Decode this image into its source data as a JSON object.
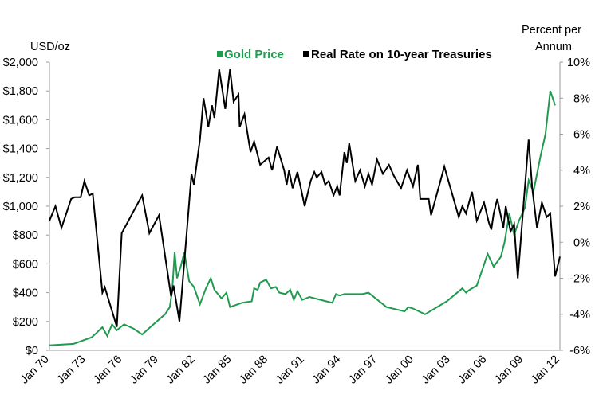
{
  "chart_data": {
    "type": "line",
    "left_axis_title": "USD/oz",
    "right_axis_title_lines": [
      "Percent per",
      "Annum"
    ],
    "left_ylim": [
      0,
      2000
    ],
    "right_ylim": [
      -6,
      10
    ],
    "left_ticks": [
      "$0",
      "$200",
      "$400",
      "$600",
      "$800",
      "$1,000",
      "$1,200",
      "$1,400",
      "$1,600",
      "$1,800",
      "$2,000"
    ],
    "right_ticks": [
      "-6%",
      "-4%",
      "-2%",
      "0%",
      "2%",
      "4%",
      "6%",
      "8%",
      "10%"
    ],
    "x_ticks": [
      "Jan 70",
      "Jan 73",
      "Jan 76",
      "Jan 79",
      "Jan 82",
      "Jan 85",
      "Jan 88",
      "Jan 91",
      "Jan 94",
      "Jan 97",
      "Jan 00",
      "Jan 03",
      "Jan 06",
      "Jan 09",
      "Jan 12"
    ],
    "xlim": [
      1970.0,
      2012.4
    ],
    "grid": false,
    "legend_position": "top-center",
    "colors": {
      "gold": "#1f9a4f",
      "real_rate": "#000000"
    },
    "series": [
      {
        "name": "Gold Price",
        "axis": "left",
        "color": "#1f9a4f",
        "points": [
          [
            1970.0,
            35
          ],
          [
            1972.0,
            45
          ],
          [
            1973.5,
            90
          ],
          [
            1973.9,
            120
          ],
          [
            1974.4,
            160
          ],
          [
            1974.8,
            100
          ],
          [
            1975.2,
            180
          ],
          [
            1975.6,
            140
          ],
          [
            1976.2,
            180
          ],
          [
            1977.0,
            150
          ],
          [
            1977.7,
            110
          ],
          [
            1978.5,
            170
          ],
          [
            1979.6,
            250
          ],
          [
            1980.0,
            300
          ],
          [
            1980.2,
            420
          ],
          [
            1980.4,
            680
          ],
          [
            1980.6,
            500
          ],
          [
            1980.9,
            580
          ],
          [
            1981.2,
            680
          ],
          [
            1981.6,
            480
          ],
          [
            1982.0,
            440
          ],
          [
            1982.5,
            320
          ],
          [
            1983.0,
            430
          ],
          [
            1983.4,
            500
          ],
          [
            1983.7,
            420
          ],
          [
            1984.3,
            360
          ],
          [
            1984.7,
            400
          ],
          [
            1985.0,
            300
          ],
          [
            1986.0,
            330
          ],
          [
            1986.8,
            340
          ],
          [
            1987.0,
            430
          ],
          [
            1987.3,
            420
          ],
          [
            1987.5,
            470
          ],
          [
            1988.0,
            490
          ],
          [
            1988.4,
            430
          ],
          [
            1988.8,
            440
          ],
          [
            1989.1,
            400
          ],
          [
            1989.6,
            390
          ],
          [
            1990.0,
            420
          ],
          [
            1990.3,
            350
          ],
          [
            1990.6,
            410
          ],
          [
            1991.0,
            350
          ],
          [
            1991.6,
            370
          ],
          [
            1993.0,
            340
          ],
          [
            1993.5,
            330
          ],
          [
            1993.8,
            390
          ],
          [
            1994.1,
            380
          ],
          [
            1994.5,
            390
          ],
          [
            1996.0,
            390
          ],
          [
            1996.5,
            400
          ],
          [
            1998.0,
            300
          ],
          [
            1999.0,
            280
          ],
          [
            1999.5,
            270
          ],
          [
            1999.8,
            300
          ],
          [
            2000.2,
            290
          ],
          [
            2001.2,
            250
          ],
          [
            2003.0,
            340
          ],
          [
            2004.3,
            430
          ],
          [
            2004.6,
            400
          ],
          [
            2004.9,
            420
          ],
          [
            2005.5,
            450
          ],
          [
            2006.0,
            570
          ],
          [
            2006.4,
            670
          ],
          [
            2006.9,
            580
          ],
          [
            2007.5,
            650
          ],
          [
            2007.8,
            750
          ],
          [
            2008.2,
            950
          ],
          [
            2008.6,
            800
          ],
          [
            2009.0,
            900
          ],
          [
            2009.5,
            990
          ],
          [
            2009.8,
            1180
          ],
          [
            2010.2,
            1100
          ],
          [
            2010.8,
            1350
          ],
          [
            2011.2,
            1500
          ],
          [
            2011.6,
            1800
          ],
          [
            2012.0,
            1700
          ]
        ]
      },
      {
        "name": "Real Rate on 10-year Treasuries",
        "axis": "right",
        "color": "#000000",
        "points": [
          [
            1970.0,
            1.2
          ],
          [
            1970.5,
            2.0
          ],
          [
            1971.0,
            0.8
          ],
          [
            1971.8,
            2.4
          ],
          [
            1972.1,
            2.5
          ],
          [
            1972.6,
            2.5
          ],
          [
            1972.9,
            3.4
          ],
          [
            1973.3,
            2.6
          ],
          [
            1973.6,
            2.7
          ],
          [
            1974.4,
            -2.8
          ],
          [
            1974.6,
            -2.5
          ],
          [
            1975.6,
            -4.7
          ],
          [
            1976.0,
            0.5
          ],
          [
            1977.7,
            2.6
          ],
          [
            1978.3,
            0.5
          ],
          [
            1979.1,
            1.5
          ],
          [
            1980.1,
            -3.0
          ],
          [
            1980.3,
            -2.4
          ],
          [
            1980.8,
            -4.4
          ],
          [
            1981.8,
            3.8
          ],
          [
            1982.0,
            3.2
          ],
          [
            1982.5,
            5.7
          ],
          [
            1982.8,
            8.0
          ],
          [
            1983.2,
            6.4
          ],
          [
            1983.5,
            7.6
          ],
          [
            1983.7,
            6.9
          ],
          [
            1984.1,
            9.6
          ],
          [
            1984.6,
            7.4
          ],
          [
            1985.0,
            9.6
          ],
          [
            1985.3,
            7.8
          ],
          [
            1985.7,
            8.2
          ],
          [
            1985.8,
            6.4
          ],
          [
            1986.2,
            7.1
          ],
          [
            1986.7,
            5.0
          ],
          [
            1987.0,
            5.6
          ],
          [
            1987.5,
            4.3
          ],
          [
            1988.2,
            4.7
          ],
          [
            1988.5,
            4.0
          ],
          [
            1988.9,
            5.3
          ],
          [
            1989.5,
            4.0
          ],
          [
            1989.7,
            3.2
          ],
          [
            1989.9,
            4.0
          ],
          [
            1990.2,
            3.0
          ],
          [
            1990.6,
            3.9
          ],
          [
            1991.2,
            2.0
          ],
          [
            1991.7,
            3.4
          ],
          [
            1992.0,
            3.9
          ],
          [
            1992.2,
            3.6
          ],
          [
            1992.6,
            3.9
          ],
          [
            1992.9,
            3.2
          ],
          [
            1993.2,
            3.4
          ],
          [
            1993.6,
            2.6
          ],
          [
            1993.9,
            3.1
          ],
          [
            1994.1,
            2.6
          ],
          [
            1994.5,
            5.0
          ],
          [
            1994.7,
            4.4
          ],
          [
            1994.9,
            5.5
          ],
          [
            1995.4,
            3.4
          ],
          [
            1995.8,
            4.0
          ],
          [
            1996.2,
            3.1
          ],
          [
            1996.5,
            3.8
          ],
          [
            1996.8,
            3.2
          ],
          [
            1997.2,
            4.6
          ],
          [
            1997.7,
            3.8
          ],
          [
            1998.2,
            4.3
          ],
          [
            1998.6,
            3.7
          ],
          [
            1999.2,
            3.0
          ],
          [
            1999.7,
            4.0
          ],
          [
            2000.2,
            3.1
          ],
          [
            2000.6,
            4.3
          ],
          [
            2000.8,
            2.4
          ],
          [
            2001.5,
            2.4
          ],
          [
            2001.7,
            1.5
          ],
          [
            2002.8,
            4.2
          ],
          [
            2004.0,
            1.4
          ],
          [
            2004.3,
            2.0
          ],
          [
            2004.6,
            1.6
          ],
          [
            2005.1,
            2.8
          ],
          [
            2005.5,
            1.2
          ],
          [
            2006.1,
            2.2
          ],
          [
            2006.5,
            1.1
          ],
          [
            2006.7,
            0.7
          ],
          [
            2006.9,
            1.6
          ],
          [
            2007.2,
            2.4
          ],
          [
            2007.7,
            0.8
          ],
          [
            2007.9,
            2.0
          ],
          [
            2008.3,
            0.6
          ],
          [
            2008.6,
            1.0
          ],
          [
            2008.9,
            -2.0
          ],
          [
            2009.8,
            5.7
          ],
          [
            2010.1,
            3.0
          ],
          [
            2010.5,
            0.8
          ],
          [
            2010.9,
            2.2
          ],
          [
            2011.3,
            1.4
          ],
          [
            2011.6,
            1.6
          ],
          [
            2012.0,
            -1.9
          ],
          [
            2012.4,
            -0.8
          ]
        ]
      }
    ]
  }
}
